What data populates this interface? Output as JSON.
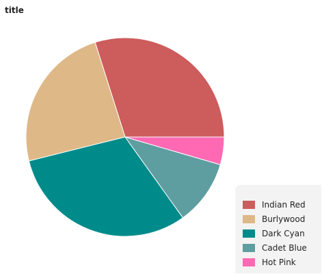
{
  "chart_data": {
    "type": "pie",
    "title": "title",
    "categories": [
      "Indian Red",
      "Burlywood",
      "Dark Cyan",
      "Cadet Blue",
      "Hot Pink"
    ],
    "values": [
      29.3,
      23.5,
      30.4,
      10.4,
      4.4
    ],
    "colors": [
      "#cd5c5c",
      "#deb887",
      "#008b8b",
      "#5f9ea0",
      "#ff69b4"
    ],
    "legend": "right-bottom",
    "start": "3 o'clock",
    "direction": "counterclockwise"
  }
}
